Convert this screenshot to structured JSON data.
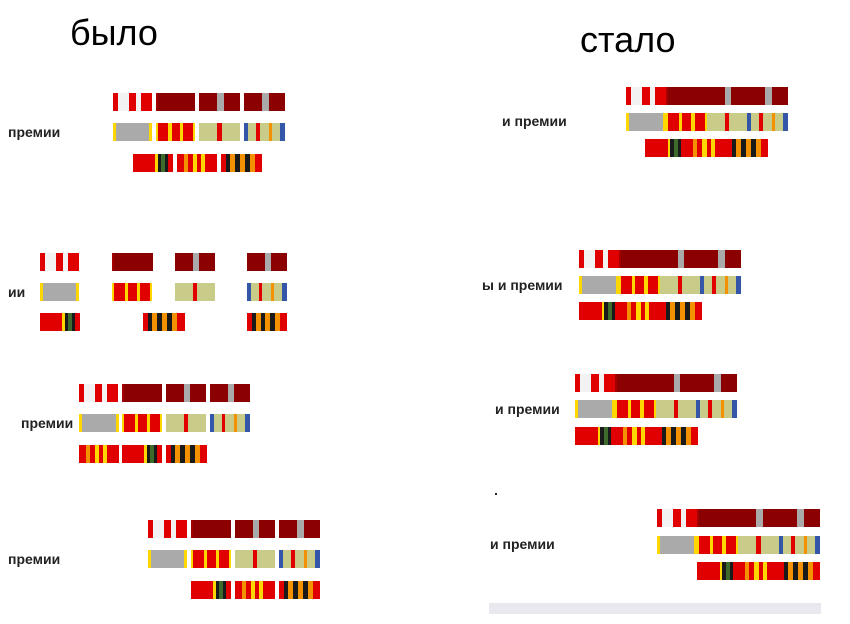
{
  "before": {
    "title": "было"
  },
  "after": {
    "title": "стало"
  },
  "labels": [
    "премии",
    "ии",
    "премии",
    "премии",
    "и премии",
    "ы и премии",
    "и премии",
    "и премии"
  ],
  "palette": {
    "red": "#e10000",
    "dark_red": "#8b0000",
    "maroon": "#a50000",
    "white": "#f2f2f2",
    "gray": "#aaaaaa",
    "yellow": "#ffd700",
    "khaki": "#c8cc88",
    "blue": "#3456a8",
    "orange": "#f39100",
    "black": "#1a1a1a",
    "green": "#3e6b2c"
  },
  "ribbon_rows": [
    "top",
    "middle",
    "bottom"
  ]
}
